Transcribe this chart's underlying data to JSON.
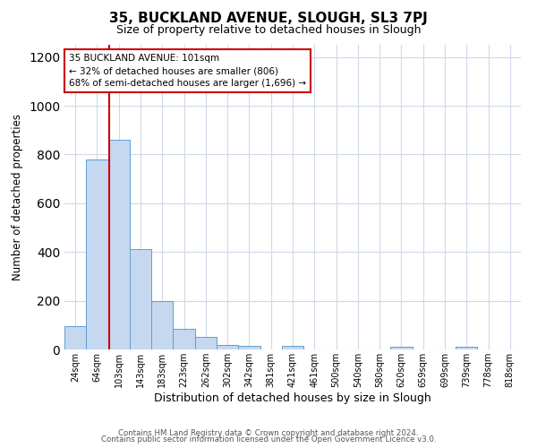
{
  "title": "35, BUCKLAND AVENUE, SLOUGH, SL3 7PJ",
  "subtitle": "Size of property relative to detached houses in Slough",
  "xlabel": "Distribution of detached houses by size in Slough",
  "ylabel": "Number of detached properties",
  "bar_labels": [
    "24sqm",
    "64sqm",
    "103sqm",
    "143sqm",
    "183sqm",
    "223sqm",
    "262sqm",
    "302sqm",
    "342sqm",
    "381sqm",
    "421sqm",
    "461sqm",
    "500sqm",
    "540sqm",
    "580sqm",
    "620sqm",
    "659sqm",
    "699sqm",
    "739sqm",
    "778sqm",
    "818sqm"
  ],
  "bar_values": [
    95,
    780,
    860,
    410,
    200,
    85,
    53,
    20,
    15,
    0,
    15,
    0,
    0,
    0,
    0,
    10,
    0,
    0,
    10,
    0,
    0
  ],
  "bar_color": "#c5d8f0",
  "bar_edge_color": "#5a9fd4",
  "property_line_color": "#cc0000",
  "annotation_line1": "35 BUCKLAND AVENUE: 101sqm",
  "annotation_line2": "← 32% of detached houses are smaller (806)",
  "annotation_line3": "68% of semi-detached houses are larger (1,696) →",
  "annotation_box_color": "#ffffff",
  "annotation_box_edge": "#cc0000",
  "ylim": [
    0,
    1250
  ],
  "yticks": [
    0,
    200,
    400,
    600,
    800,
    1000,
    1200
  ],
  "footer_line1": "Contains HM Land Registry data © Crown copyright and database right 2024.",
  "footer_line2": "Contains public sector information licensed under the Open Government Licence v3.0.",
  "bg_color": "#ffffff",
  "grid_color": "#d0d8e8"
}
